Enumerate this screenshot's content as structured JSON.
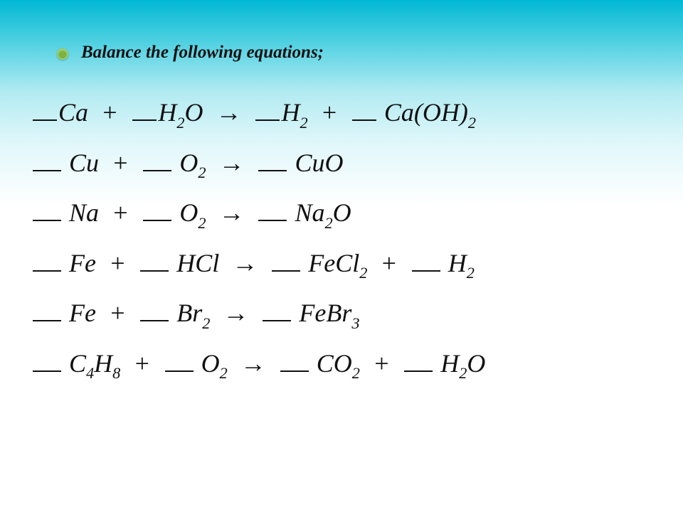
{
  "slide": {
    "heading": "Balance the following equations;",
    "bullet_color": "#7cb342",
    "heading_fontsize_pt": 19,
    "heading_style": "bold italic",
    "equation_fontsize_pt": 27,
    "equation_style": "italic",
    "text_color": "#111111",
    "background_gradient": [
      "#00b8d4",
      "#4dd0e1",
      "#b2ebf2",
      "#e0f7fa",
      "#ffffff"
    ],
    "arrow_glyph": "→",
    "plus_glyph": "+",
    "blank_glyph": "__",
    "equations": [
      {
        "terms": [
          {
            "blank": true,
            "species": "Ca"
          },
          {
            "op": "+"
          },
          {
            "blank": true,
            "species": "H",
            "sub": "2",
            "tail": "O"
          },
          {
            "op": "→"
          },
          {
            "blank": true,
            "species": "H",
            "sub": "2"
          },
          {
            "op": "+"
          },
          {
            "blank": true,
            "species": "Ca(OH)",
            "sub": "2"
          }
        ]
      },
      {
        "terms": [
          {
            "blank": true,
            "species": "Cu"
          },
          {
            "op": "+"
          },
          {
            "blank": true,
            "species": "O",
            "sub": "2"
          },
          {
            "op": "→"
          },
          {
            "blank": true,
            "species": "CuO"
          }
        ]
      },
      {
        "terms": [
          {
            "blank": true,
            "species": "Na"
          },
          {
            "op": "+"
          },
          {
            "blank": true,
            "species": "O",
            "sub": "2"
          },
          {
            "op": "→"
          },
          {
            "blank": true,
            "species": "Na",
            "sub": "2",
            "tail": "O"
          }
        ]
      },
      {
        "terms": [
          {
            "blank": true,
            "species": "Fe"
          },
          {
            "op": "+"
          },
          {
            "blank": true,
            "species": "HCl"
          },
          {
            "op": "→"
          },
          {
            "blank": true,
            "species": "FeCl",
            "sub": "2"
          },
          {
            "op": "+"
          },
          {
            "blank": true,
            "species": "H",
            "sub": "2"
          }
        ]
      },
      {
        "terms": [
          {
            "blank": true,
            "species": "Fe"
          },
          {
            "op": "+"
          },
          {
            "blank": true,
            "species": "Br",
            "sub": "2"
          },
          {
            "op": "→"
          },
          {
            "blank": true,
            "species": "FeBr",
            "sub": "3"
          }
        ]
      },
      {
        "terms": [
          {
            "blank": true,
            "species": "C",
            "sub": "4",
            "tail": "H",
            "sub2": "8"
          },
          {
            "op": "+"
          },
          {
            "blank": true,
            "species": "O",
            "sub": "2"
          },
          {
            "op": "→"
          },
          {
            "blank": true,
            "species": "CO",
            "sub": "2"
          },
          {
            "op": "+"
          },
          {
            "blank": true,
            "species": "H",
            "sub": "2",
            "tail": "O"
          }
        ]
      }
    ]
  }
}
